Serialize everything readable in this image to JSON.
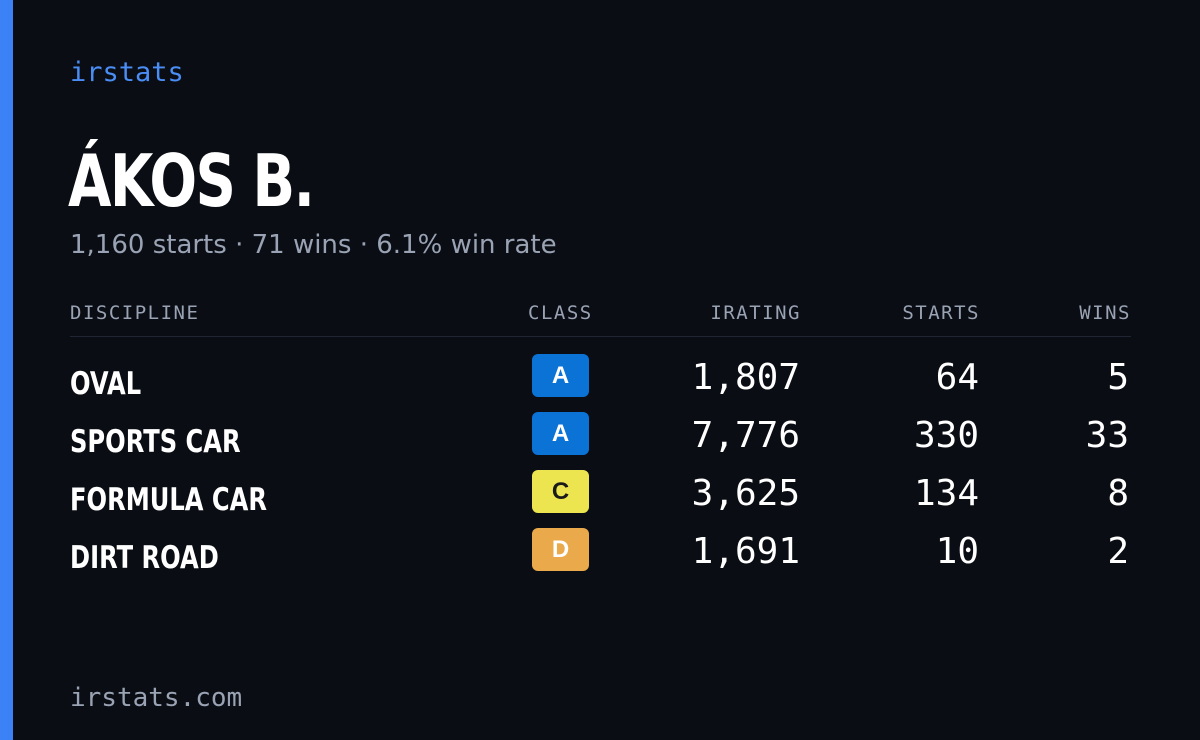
{
  "brand": {
    "name": "irstats",
    "footer_url": "irstats.com",
    "accent_color": "#3b82f6"
  },
  "player": {
    "name": "ÁKOS B.",
    "summary": "1,160 starts · 71 wins · 6.1% win rate"
  },
  "table": {
    "headers": {
      "discipline": "DISCIPLINE",
      "class": "CLASS",
      "irating": "IRATING",
      "starts": "STARTS",
      "wins": "WINS"
    },
    "rows": [
      {
        "discipline": "OVAL",
        "class": "A",
        "class_bg": "#0b72d6",
        "class_fg": "#ffffff",
        "irating": "1,807",
        "starts": "64",
        "wins": "5"
      },
      {
        "discipline": "SPORTS CAR",
        "class": "A",
        "class_bg": "#0b72d6",
        "class_fg": "#ffffff",
        "irating": "7,776",
        "starts": "330",
        "wins": "33"
      },
      {
        "discipline": "FORMULA CAR",
        "class": "C",
        "class_bg": "#ece54f",
        "class_fg": "#1a1a1a",
        "irating": "3,625",
        "starts": "134",
        "wins": "8"
      },
      {
        "discipline": "DIRT ROAD",
        "class": "D",
        "class_bg": "#eaa94b",
        "class_fg": "#ffffff",
        "irating": "1,691",
        "starts": "10",
        "wins": "2"
      }
    ]
  }
}
